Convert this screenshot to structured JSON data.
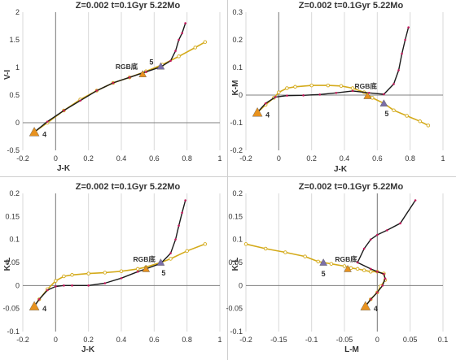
{
  "chart_data": [
    {
      "type": "line",
      "title": "Z=0.002  t=0.1Gyr 5.22Mo",
      "xlabel": "J-K",
      "ylabel": "V-I",
      "xlim": [
        -0.2,
        1.0
      ],
      "ylim": [
        -0.5,
        2.0
      ],
      "xticks": [
        "-0.2",
        "0",
        "0.2",
        "0.4",
        "0.6",
        "0.8",
        "1"
      ],
      "yticks": [
        "-0.5",
        "0",
        "0.5",
        "1",
        "1.5",
        "2"
      ],
      "grid": "vertical",
      "series": [
        {
          "color": "#d4aa1a",
          "x": [
            -0.13,
            -0.05,
            0.05,
            0.15,
            0.25,
            0.35,
            0.45,
            0.55,
            0.65,
            0.75,
            0.85,
            0.91
          ],
          "y": [
            -0.17,
            0.0,
            0.22,
            0.42,
            0.58,
            0.72,
            0.82,
            0.93,
            1.05,
            1.2,
            1.36,
            1.46
          ]
        },
        {
          "color": "#1a1a1a",
          "x": [
            -0.13,
            -0.05,
            0.05,
            0.15,
            0.25,
            0.35,
            0.45,
            0.55,
            0.64,
            0.7,
            0.73,
            0.75,
            0.77,
            0.79
          ],
          "y": [
            -0.17,
            0.02,
            0.22,
            0.4,
            0.58,
            0.72,
            0.82,
            0.92,
            1.01,
            1.12,
            1.3,
            1.5,
            1.62,
            1.8
          ]
        }
      ],
      "markers": [
        {
          "label": "4",
          "x": -0.13,
          "y": -0.17,
          "color": "#e8921e"
        },
        {
          "label": "RGB底",
          "x": 0.53,
          "y": 0.88,
          "color": "#e8921e"
        },
        {
          "label": "5",
          "x": 0.64,
          "y": 1.02,
          "color": "#7b6fa8"
        }
      ]
    },
    {
      "type": "line",
      "title": "Z=0.002  t=0.1Gyr 5.22Mo",
      "xlabel": "J-K",
      "ylabel": "K-M",
      "xlim": [
        -0.2,
        1.0
      ],
      "ylim": [
        -0.2,
        0.3
      ],
      "xticks": [
        "-0.2",
        "0",
        "0.2",
        "0.4",
        "0.6",
        "0.8",
        "1"
      ],
      "yticks": [
        "-0.2",
        "-0.1",
        "0",
        "0.1",
        "0.2",
        "0.3"
      ],
      "grid": "vertical",
      "series": [
        {
          "color": "#d4aa1a",
          "x": [
            -0.13,
            -0.08,
            -0.03,
            0.0,
            0.05,
            0.1,
            0.2,
            0.3,
            0.38,
            0.45,
            0.52,
            0.57,
            0.64,
            0.7,
            0.78,
            0.86,
            0.91
          ],
          "y": [
            -0.063,
            -0.035,
            -0.01,
            0.01,
            0.025,
            0.03,
            0.035,
            0.035,
            0.033,
            0.025,
            0.01,
            -0.01,
            -0.03,
            -0.055,
            -0.075,
            -0.095,
            -0.11
          ]
        },
        {
          "color": "#1a1a1a",
          "x": [
            -0.13,
            -0.08,
            -0.02,
            0.05,
            0.15,
            0.25,
            0.35,
            0.45,
            0.55,
            0.64,
            0.7,
            0.73,
            0.75,
            0.77,
            0.79
          ],
          "y": [
            -0.063,
            -0.03,
            -0.007,
            -0.002,
            -0.001,
            0.002,
            0.008,
            0.015,
            0.008,
            0.003,
            0.04,
            0.09,
            0.15,
            0.2,
            0.245
          ]
        }
      ],
      "markers": [
        {
          "label": "4",
          "x": -0.13,
          "y": -0.063,
          "color": "#e8921e"
        },
        {
          "label": "RGB底",
          "x": 0.54,
          "y": -0.003,
          "color": "#e8921e"
        },
        {
          "label": "5",
          "x": 0.64,
          "y": -0.03,
          "color": "#7b6fa8"
        }
      ]
    },
    {
      "type": "line",
      "title": "Z=0.002  t=0.1Gyr 5.22Mo",
      "xlabel": "J-K",
      "ylabel": "K-L",
      "xlim": [
        -0.2,
        1.0
      ],
      "ylim": [
        -0.1,
        0.2
      ],
      "xticks": [
        "-0.2",
        "0",
        "0.2",
        "0.4",
        "0.6",
        "0.8",
        "1"
      ],
      "yticks": [
        "-0.1",
        "-0.05",
        "0",
        "0.05",
        "0.1",
        "0.15",
        "0.2"
      ],
      "grid": "vertical",
      "series": [
        {
          "color": "#d4aa1a",
          "x": [
            -0.13,
            -0.1,
            -0.05,
            0.0,
            0.05,
            0.1,
            0.2,
            0.3,
            0.4,
            0.5,
            0.55,
            0.64,
            0.7,
            0.8,
            0.91
          ],
          "y": [
            -0.045,
            -0.03,
            -0.008,
            0.01,
            0.02,
            0.023,
            0.026,
            0.028,
            0.031,
            0.036,
            0.04,
            0.05,
            0.058,
            0.075,
            0.09
          ]
        },
        {
          "color": "#1a1a1a",
          "x": [
            -0.13,
            -0.1,
            -0.05,
            0.0,
            0.05,
            0.1,
            0.2,
            0.3,
            0.4,
            0.5,
            0.55,
            0.64,
            0.7,
            0.73,
            0.75,
            0.77,
            0.79
          ],
          "y": [
            -0.045,
            -0.03,
            -0.01,
            -0.002,
            0.0,
            0.0,
            0.0,
            0.005,
            0.016,
            0.03,
            0.036,
            0.048,
            0.07,
            0.1,
            0.13,
            0.158,
            0.185
          ]
        }
      ],
      "markers": [
        {
          "label": "4",
          "x": -0.13,
          "y": -0.045,
          "color": "#e8921e"
        },
        {
          "label": "RGB底",
          "x": 0.55,
          "y": 0.036,
          "color": "#e8921e"
        },
        {
          "label": "5",
          "x": 0.64,
          "y": 0.05,
          "color": "#7b6fa8"
        }
      ]
    },
    {
      "type": "line",
      "title": "Z=0.002  t=0.1Gyr 5.22Mo",
      "xlabel": "L-M",
      "ylabel": "K-L",
      "xlim": [
        -0.2,
        0.1
      ],
      "ylim": [
        -0.1,
        0.2
      ],
      "xticks": [
        "-0.2",
        "-0.15",
        "-0.1",
        "-0.05",
        "0",
        "0.05",
        "0.1"
      ],
      "yticks": [
        "-0.1",
        "-0.05",
        "0",
        "0.05",
        "0.1",
        "0.15",
        "0.2"
      ],
      "grid": "vertical",
      "series": [
        {
          "color": "#d4aa1a",
          "x": [
            -0.2,
            -0.17,
            -0.14,
            -0.11,
            -0.09,
            -0.07,
            -0.05,
            -0.04,
            -0.03,
            -0.02,
            -0.01,
            0.0,
            0.01,
            0.012,
            0.005,
            0.0,
            -0.01,
            -0.018
          ],
          "y": [
            0.09,
            0.08,
            0.072,
            0.063,
            0.052,
            0.047,
            0.042,
            0.038,
            0.036,
            0.033,
            0.03,
            0.03,
            0.026,
            0.012,
            -0.002,
            -0.015,
            -0.03,
            -0.045
          ]
        },
        {
          "color": "#1a1a1a",
          "x": [
            -0.018,
            -0.01,
            0.0,
            0.008,
            0.012,
            0.01,
            0.0,
            -0.01,
            -0.03,
            -0.02,
            -0.01,
            0.0,
            0.015,
            0.035,
            0.058
          ],
          "y": [
            -0.045,
            -0.03,
            -0.015,
            0.0,
            0.015,
            0.025,
            0.03,
            0.036,
            0.05,
            0.08,
            0.1,
            0.11,
            0.12,
            0.135,
            0.185
          ]
        }
      ],
      "markers": [
        {
          "label": "4",
          "x": -0.018,
          "y": -0.045,
          "color": "#e8921e"
        },
        {
          "label": "RGB底",
          "x": -0.045,
          "y": 0.036,
          "color": "#e8921e"
        },
        {
          "label": "5",
          "x": -0.082,
          "y": 0.05,
          "color": "#7b6fa8"
        }
      ]
    }
  ]
}
